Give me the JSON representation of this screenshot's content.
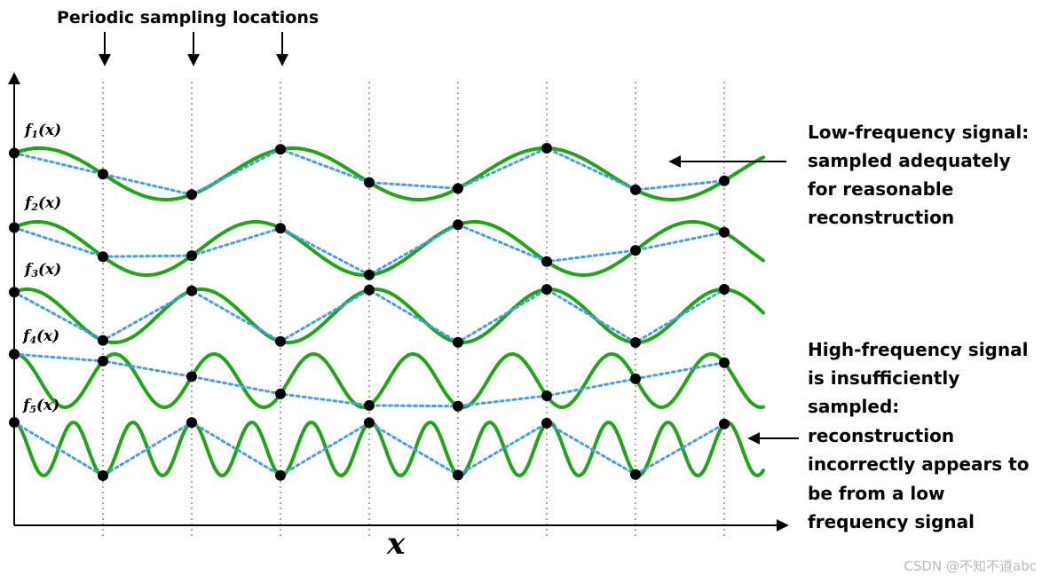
{
  "title": "Periodic sampling locations",
  "x_axis_label": "x",
  "functions": [
    {
      "name": "f",
      "sub": "1",
      "arg": "(x)"
    },
    {
      "name": "f",
      "sub": "2",
      "arg": "(x)"
    },
    {
      "name": "f",
      "sub": "3",
      "arg": "(x)"
    },
    {
      "name": "f",
      "sub": "4",
      "arg": "(x)"
    },
    {
      "name": "f",
      "sub": "5",
      "arg": "(x)"
    }
  ],
  "low_note": [
    "Low-frequency signal:",
    "sampled adequately",
    "for reasonable",
    "reconstruction"
  ],
  "high_note": [
    "High-frequency signal",
    "is insufficiently",
    "sampled:",
    "reconstruction",
    "incorrectly appears to",
    "be from a low",
    "frequency signal"
  ],
  "watermark": "CSDN @不知不道abc",
  "colors": {
    "signal": "#22a31a",
    "reconstruction": "#4c9cec",
    "sample_dot": "#000000",
    "sampling_line": "#a6a6a6"
  }
}
